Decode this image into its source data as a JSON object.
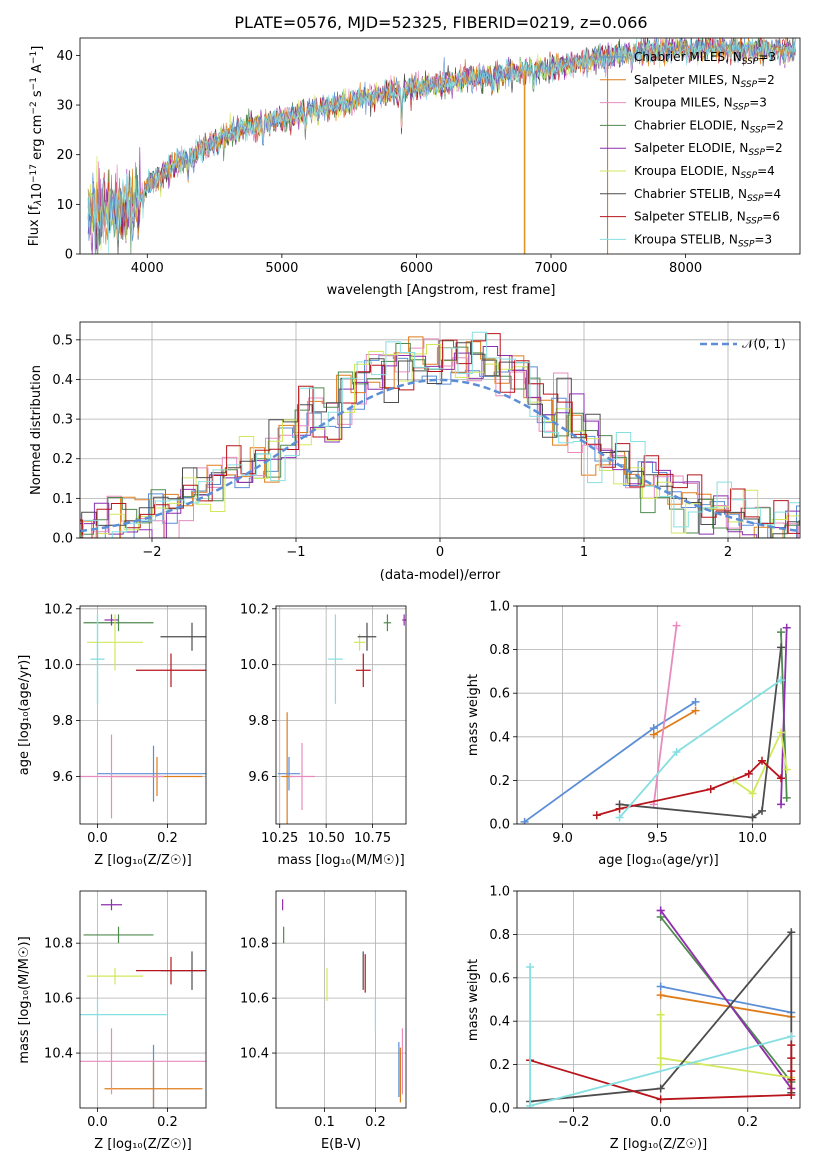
{
  "colors": [
    "#5b8ed6",
    "#e17c1b",
    "#e88bbf",
    "#4f8a4f",
    "#8e2fb0",
    "#d2e85c",
    "#4d4d4d",
    "#b8141b",
    "#86dfe0"
  ],
  "models": [
    {
      "label": "Chabrier MILES, N",
      "n": "=3"
    },
    {
      "label": "Salpeter MILES, N",
      "n": "=2"
    },
    {
      "label": "Kroupa MILES, N",
      "n": "=3"
    },
    {
      "label": "Chabrier ELODIE, N",
      "n": "=2"
    },
    {
      "label": "Salpeter ELODIE, N",
      "n": "=2"
    },
    {
      "label": "Kroupa ELODIE, N",
      "n": "=4"
    },
    {
      "label": "Chabrier STELIB, N",
      "n": "=4"
    },
    {
      "label": "Salpeter STELIB, N",
      "n": "=6"
    },
    {
      "label": "Kroupa STELIB, N",
      "n": "=3"
    }
  ],
  "nsub": "SSP",
  "chart_data": [
    {
      "type": "line",
      "title": "PLATE=0576, MJD=52325, FIBERID=0219, z=0.066",
      "xlabel": "wavelength [Angstrom, rest frame]",
      "ylabel_prefix": "Flux [f",
      "ylabel_mid": "10",
      "ylabel_exp": "−17",
      "ylabel_rest": " erg cm",
      "ylabel_exp2": "−2",
      "ylabel_rest2": " s",
      "ylabel_exp3": "−1",
      "ylabel_rest3": " A",
      "ylabel_exp4": "−1",
      "ylabel_end": "]",
      "xlim": [
        3500,
        8850
      ],
      "ylim": [
        0,
        43.5
      ],
      "xticks": [
        "4000",
        "5000",
        "6000",
        "7000",
        "8000"
      ],
      "xtick_values": [
        4000,
        5000,
        6000,
        7000,
        8000
      ],
      "yticks": [
        "0",
        "10",
        "20",
        "30",
        "40"
      ],
      "ytick_values": [
        0,
        10,
        20,
        30,
        40
      ],
      "continuum": [
        [
          3560,
          8
        ],
        [
          3700,
          8.5
        ],
        [
          3900,
          10
        ],
        [
          4000,
          14
        ],
        [
          4200,
          18
        ],
        [
          4400,
          21
        ],
        [
          4600,
          24
        ],
        [
          4800,
          26
        ],
        [
          5000,
          27
        ],
        [
          5200,
          29
        ],
        [
          5400,
          30
        ],
        [
          5600,
          31.5
        ],
        [
          5800,
          32.5
        ],
        [
          6000,
          33.5
        ],
        [
          6200,
          34.5
        ],
        [
          6400,
          35.5
        ],
        [
          6600,
          36
        ],
        [
          6800,
          37
        ],
        [
          7000,
          37.5
        ],
        [
          7200,
          38.5
        ],
        [
          7400,
          39.5
        ],
        [
          7600,
          40.5
        ],
        [
          7800,
          41
        ],
        [
          8000,
          41.5
        ],
        [
          8200,
          41.5
        ],
        [
          8400,
          41
        ],
        [
          8600,
          41
        ],
        [
          8820,
          41
        ]
      ]
    },
    {
      "type": "bar",
      "xlabel": "(data-model)/error",
      "ylabel": "Normed distribution",
      "xlim": [
        -2.5,
        2.5
      ],
      "ylim": [
        0,
        0.545
      ],
      "xticks": [
        "−2",
        "−1",
        "0",
        "1",
        "2"
      ],
      "xtick_values": [
        -2,
        -1,
        0,
        1,
        2
      ],
      "yticks": [
        "0.0",
        "0.1",
        "0.2",
        "0.3",
        "0.4",
        "0.5"
      ],
      "ytick_values": [
        0,
        0.1,
        0.2,
        0.3,
        0.4,
        0.5
      ],
      "legend": "𝒩(0, 1)",
      "bin_width": 0.1
    },
    {
      "type": "scatter",
      "xlabel": "Z [log₁₀(Z/Z☉)]",
      "ylabel": "age  [log₁₀(age/yr)]",
      "xlim": [
        -0.05,
        0.31
      ],
      "ylim": [
        9.43,
        10.21
      ],
      "xticks": [
        "0.0",
        "0.2"
      ],
      "xtick_values": [
        0,
        0.2
      ],
      "yticks": [
        "9.6",
        "9.8",
        "10.0",
        "10.2"
      ],
      "ytick_values": [
        9.6,
        9.8,
        10.0,
        10.2
      ],
      "points": [
        {
          "x": 0.16,
          "y": 9.61,
          "xerr": 0.16,
          "yerr": 0.1,
          "c": 0
        },
        {
          "x": 0.17,
          "y": 9.6,
          "xerr": 0.13,
          "yerr": 0.07,
          "c": 1
        },
        {
          "x": 0.04,
          "y": 9.6,
          "xerr": 0.15,
          "yerr": 0.15,
          "c": 2
        },
        {
          "x": 0.06,
          "y": 10.15,
          "xerr": 0.1,
          "yerr": 0.03,
          "c": 3
        },
        {
          "x": 0.04,
          "y": 10.16,
          "xerr": 0.02,
          "yerr": 0.02,
          "c": 4
        },
        {
          "x": 0.05,
          "y": 10.08,
          "xerr": 0.08,
          "yerr": 0.1,
          "c": 5
        },
        {
          "x": 0.27,
          "y": 10.1,
          "xerr": 0.09,
          "yerr": 0.05,
          "c": 6
        },
        {
          "x": 0.21,
          "y": 9.98,
          "xerr": 0.1,
          "yerr": 0.06,
          "c": 7
        },
        {
          "x": 0.0,
          "y": 10.02,
          "xerr": 0.02,
          "yerr": 0.16,
          "c": 8
        },
        {
          "x": 0.0,
          "y": 10.02,
          "xerr": 0.02,
          "yerr": 0.16,
          "c": 8
        }
      ]
    },
    {
      "type": "scatter",
      "xlabel": "mass [log₁₀(M/M☉)]",
      "ylabel": "",
      "xlim": [
        10.23,
        10.93
      ],
      "ylim": [
        9.43,
        10.21
      ],
      "xticks": [
        "10.25",
        "10.50",
        "10.75"
      ],
      "xtick_values": [
        10.25,
        10.5,
        10.75
      ],
      "yticks": [
        "9.6",
        "9.8",
        "10.0",
        "10.2"
      ],
      "ytick_values": [
        9.6,
        9.8,
        10.0,
        10.2
      ],
      "points": [
        {
          "x": 10.3,
          "y": 9.61,
          "xerr": 0.06,
          "yerr": 0.06,
          "c": 0
        },
        {
          "x": 10.29,
          "y": 9.6,
          "xerr": 0.03,
          "yerr": 0.23,
          "c": 1
        },
        {
          "x": 10.37,
          "y": 9.6,
          "xerr": 0.07,
          "yerr": 0.12,
          "c": 2
        },
        {
          "x": 10.83,
          "y": 10.15,
          "xerr": 0.02,
          "yerr": 0.03,
          "c": 3
        },
        {
          "x": 10.92,
          "y": 10.16,
          "xerr": 0.01,
          "yerr": 0.02,
          "c": 4
        },
        {
          "x": 10.68,
          "y": 10.08,
          "xerr": 0.03,
          "yerr": 0.03,
          "c": 5
        },
        {
          "x": 10.72,
          "y": 10.1,
          "xerr": 0.05,
          "yerr": 0.05,
          "c": 6
        },
        {
          "x": 10.7,
          "y": 9.98,
          "xerr": 0.04,
          "yerr": 0.06,
          "c": 7
        },
        {
          "x": 10.55,
          "y": 10.02,
          "xerr": 0.04,
          "yerr": 0.16,
          "c": 8
        }
      ]
    },
    {
      "type": "line",
      "xlabel": "age  [log₁₀(age/yr)]",
      "ylabel": "mass weight",
      "xlim": [
        8.76,
        10.25
      ],
      "ylim": [
        0,
        1.0
      ],
      "xticks": [
        "9.0",
        "9.5",
        "10.0"
      ],
      "xtick_values": [
        9.0,
        9.5,
        10.0
      ],
      "yticks": [
        "0.0",
        "0.2",
        "0.4",
        "0.6",
        "0.8",
        "1.0"
      ],
      "ytick_values": [
        0,
        0.2,
        0.4,
        0.6,
        0.8,
        1.0
      ],
      "series": [
        {
          "c": 0,
          "x": [
            8.8,
            9.48,
            9.7
          ],
          "y": [
            0.01,
            0.44,
            0.56
          ]
        },
        {
          "c": 1,
          "x": [
            9.48,
            9.7
          ],
          "y": [
            0.41,
            0.52
          ]
        },
        {
          "c": 2,
          "x": [
            9.48,
            9.6
          ],
          "y": [
            0.09,
            0.91
          ]
        },
        {
          "c": 3,
          "x": [
            10.15,
            10.18
          ],
          "y": [
            0.88,
            0.12
          ]
        },
        {
          "c": 4,
          "x": [
            10.15,
            10.18
          ],
          "y": [
            0.09,
            0.9
          ]
        },
        {
          "c": 5,
          "x": [
            9.9,
            10.0,
            10.15,
            10.18
          ],
          "y": [
            0.2,
            0.14,
            0.42,
            0.25
          ]
        },
        {
          "c": 6,
          "x": [
            9.3,
            10.0,
            10.05,
            10.15
          ],
          "y": [
            0.09,
            0.03,
            0.06,
            0.81
          ]
        },
        {
          "c": 7,
          "x": [
            9.18,
            9.3,
            9.78,
            9.98,
            10.05,
            10.15
          ],
          "y": [
            0.04,
            0.07,
            0.16,
            0.23,
            0.29,
            0.21
          ]
        },
        {
          "c": 8,
          "x": [
            9.3,
            9.6,
            10.15
          ],
          "y": [
            0.03,
            0.33,
            0.66
          ]
        }
      ]
    },
    {
      "type": "scatter",
      "xlabel": "Z [log₁₀(Z/Z☉)]",
      "ylabel": "mass [log₁₀(M/M☉)]",
      "xlim": [
        -0.05,
        0.31
      ],
      "ylim": [
        10.2,
        10.99
      ],
      "xticks": [
        "0.0",
        "0.2"
      ],
      "xtick_values": [
        0,
        0.2
      ],
      "yticks": [
        "10.4",
        "10.6",
        "10.8"
      ],
      "ytick_values": [
        10.4,
        10.6,
        10.8
      ],
      "points": [
        {
          "x": 0.16,
          "y": 10.29,
          "xerr": 0.0,
          "yerr": 0.14,
          "c": 0
        },
        {
          "x": 0.16,
          "y": 10.27,
          "xerr": 0.14,
          "yerr": 0.1,
          "c": 1
        },
        {
          "x": 0.04,
          "y": 10.37,
          "xerr": 0.27,
          "yerr": 0.12,
          "c": 2
        },
        {
          "x": 0.06,
          "y": 10.83,
          "xerr": 0.1,
          "yerr": 0.03,
          "c": 3
        },
        {
          "x": 0.04,
          "y": 10.94,
          "xerr": 0.03,
          "yerr": 0.02,
          "c": 4
        },
        {
          "x": 0.05,
          "y": 10.68,
          "xerr": 0.08,
          "yerr": 0.03,
          "c": 5
        },
        {
          "x": 0.27,
          "y": 10.7,
          "xerr": 0.09,
          "yerr": 0.07,
          "c": 6
        },
        {
          "x": 0.21,
          "y": 10.7,
          "xerr": 0.1,
          "yerr": 0.05,
          "c": 7
        },
        {
          "x": 0.0,
          "y": 10.54,
          "xerr": 0.2,
          "yerr": 0.06,
          "c": 8
        }
      ]
    },
    {
      "type": "scatter",
      "xlabel": "E(B-V)",
      "ylabel": "",
      "xlim": [
        0.005,
        0.26
      ],
      "ylim": [
        10.2,
        10.99
      ],
      "xticks": [
        "0.1",
        "0.2"
      ],
      "xtick_values": [
        0.1,
        0.2
      ],
      "yticks": [
        "10.4",
        "10.6",
        "10.8"
      ],
      "ytick_values": [
        10.4,
        10.6,
        10.8
      ],
      "points": [
        {
          "x": 0.246,
          "y": 10.34,
          "xerr": 0.0,
          "yerr": 0.1,
          "c": 0
        },
        {
          "x": 0.249,
          "y": 10.32,
          "xerr": 0.0,
          "yerr": 0.1,
          "c": 1
        },
        {
          "x": 0.253,
          "y": 10.37,
          "xerr": 0.0,
          "yerr": 0.12,
          "c": 2
        },
        {
          "x": 0.02,
          "y": 10.83,
          "xerr": 0.0,
          "yerr": 0.03,
          "c": 3
        },
        {
          "x": 0.018,
          "y": 10.94,
          "xerr": 0.0,
          "yerr": 0.02,
          "c": 4
        },
        {
          "x": 0.105,
          "y": 10.65,
          "xerr": 0.0,
          "yerr": 0.06,
          "c": 5
        },
        {
          "x": 0.176,
          "y": 10.7,
          "xerr": 0.0,
          "yerr": 0.07,
          "c": 6
        },
        {
          "x": 0.18,
          "y": 10.69,
          "xerr": 0.0,
          "yerr": 0.07,
          "c": 7
        },
        {
          "x": 0.2,
          "y": 10.54,
          "xerr": 0.0,
          "yerr": 0.06,
          "c": 8
        }
      ]
    },
    {
      "type": "line",
      "xlabel": "Z [log₁₀(Z/Z☉)]",
      "ylabel": "mass weight",
      "xlim": [
        -0.33,
        0.32
      ],
      "ylim": [
        0,
        1.0
      ],
      "xticks": [
        "−0.2",
        "0.0",
        "0.2"
      ],
      "xtick_values": [
        -0.2,
        0.0,
        0.2
      ],
      "yticks": [
        "0.0",
        "0.2",
        "0.4",
        "0.6",
        "0.8",
        "1.0"
      ],
      "ytick_values": [
        0,
        0.2,
        0.4,
        0.6,
        0.8,
        1.0
      ],
      "series": [
        {
          "c": 0,
          "x": [
            0.0,
            0.3
          ],
          "y": [
            0.56,
            0.44
          ]
        },
        {
          "c": 1,
          "x": [
            0.0,
            0.3
          ],
          "y": [
            0.52,
            0.42
          ]
        },
        {
          "c": 2,
          "x": [
            0.0,
            0.3
          ],
          "y": [
            0.91,
            0.09
          ]
        },
        {
          "c": 3,
          "x": [
            0.0,
            0.3
          ],
          "y": [
            0.88,
            0.12
          ]
        },
        {
          "c": 4,
          "x": [
            0.0,
            0.3
          ],
          "y": [
            0.91,
            0.09
          ]
        },
        {
          "c": 5,
          "x": [
            0.0,
            0.0,
            0.0,
            0.3
          ],
          "y": [
            0.43,
            0.2,
            0.23,
            0.14
          ]
        },
        {
          "c": 6,
          "x": [
            -0.3,
            0.0,
            0.3,
            0.3
          ],
          "y": [
            0.03,
            0.09,
            0.81,
            0.07
          ]
        },
        {
          "c": 7,
          "x": [
            -0.3,
            0.0,
            0.3,
            0.3,
            0.3,
            0.3,
            0.3
          ],
          "y": [
            0.22,
            0.04,
            0.06,
            0.17,
            0.23,
            0.29,
            0.13
          ]
        },
        {
          "c": 8,
          "x": [
            -0.3,
            -0.3,
            0.3
          ],
          "y": [
            0.65,
            0.01,
            0.33
          ]
        }
      ]
    }
  ]
}
